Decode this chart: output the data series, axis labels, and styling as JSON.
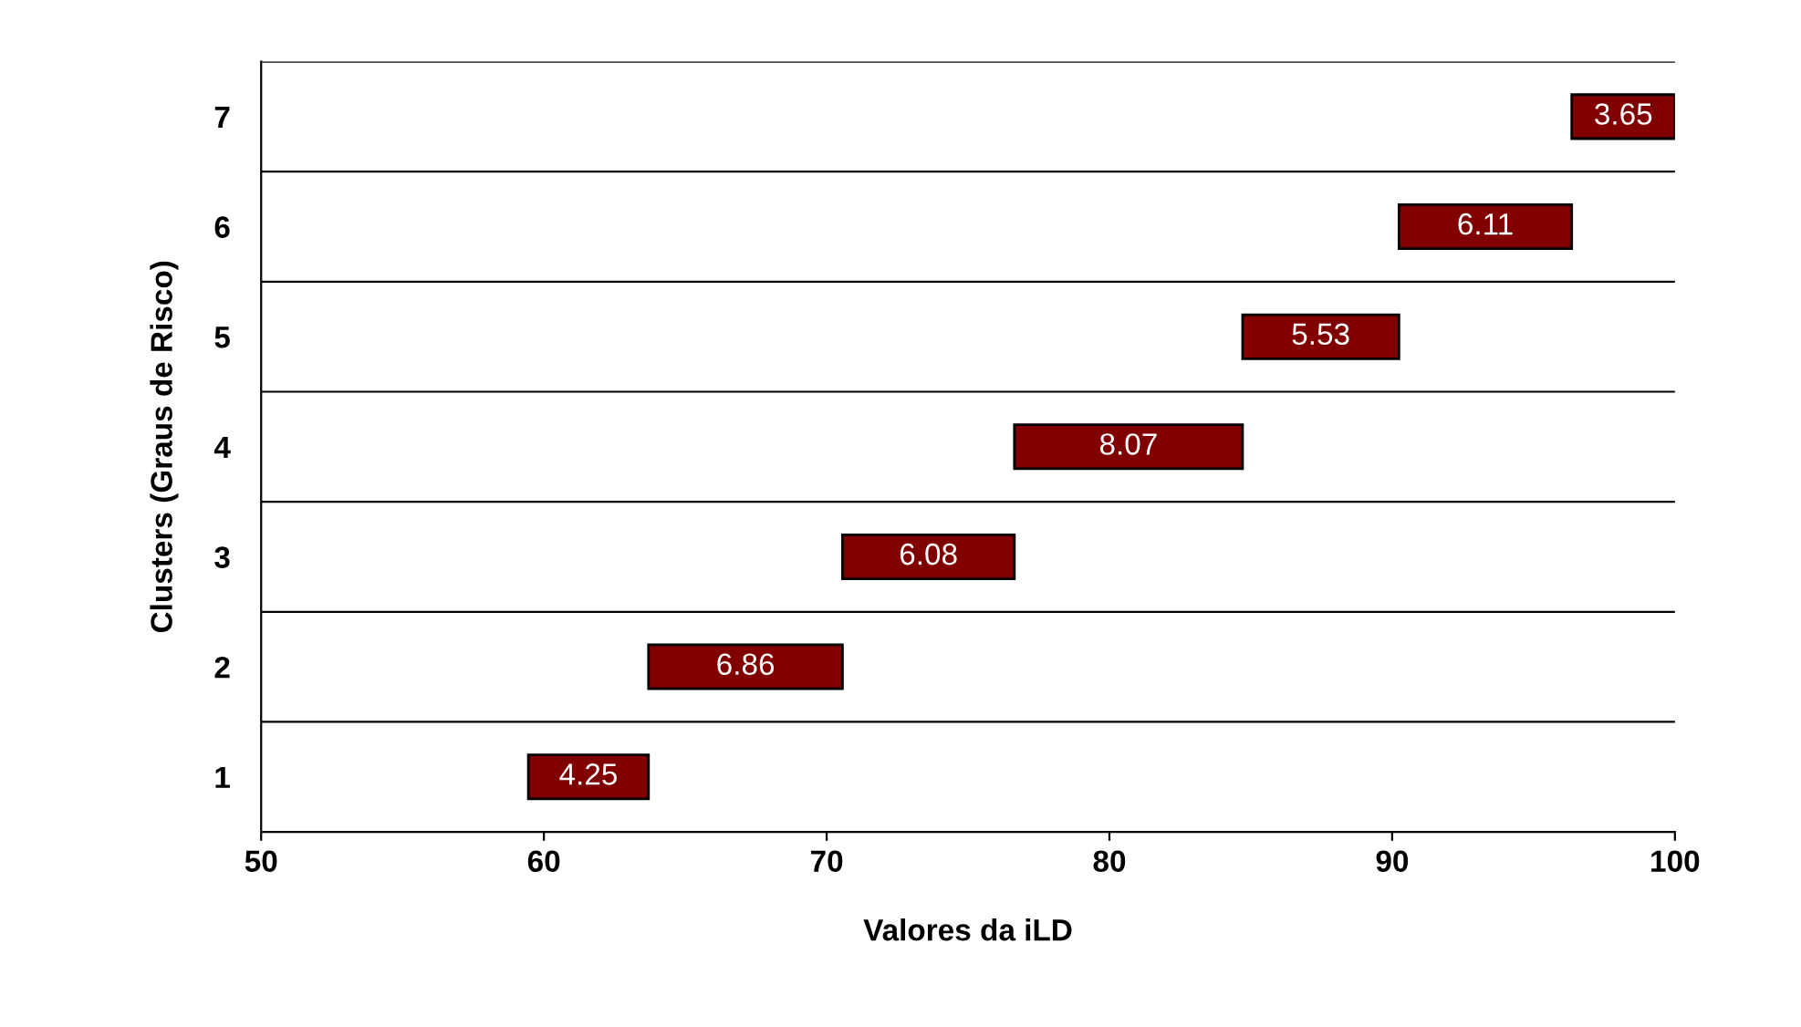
{
  "chart_data": {
    "type": "bar",
    "orientation": "horizontal",
    "categories": [
      "7",
      "6",
      "5",
      "4",
      "3",
      "2",
      "1"
    ],
    "values": [
      3.65,
      6.11,
      5.53,
      8.07,
      6.08,
      6.86,
      4.25
    ],
    "base": [
      96.35,
      90.24,
      84.71,
      76.64,
      70.56,
      63.7,
      59.45
    ],
    "color": "#800000",
    "data_labels": true,
    "xlim": [
      50,
      100
    ],
    "xticks": [
      50,
      60,
      70,
      80,
      90,
      100
    ],
    "xlabel": "Valores da iLD",
    "ylabel": "Clusters (Graus de Risco)",
    "grid": "y"
  }
}
